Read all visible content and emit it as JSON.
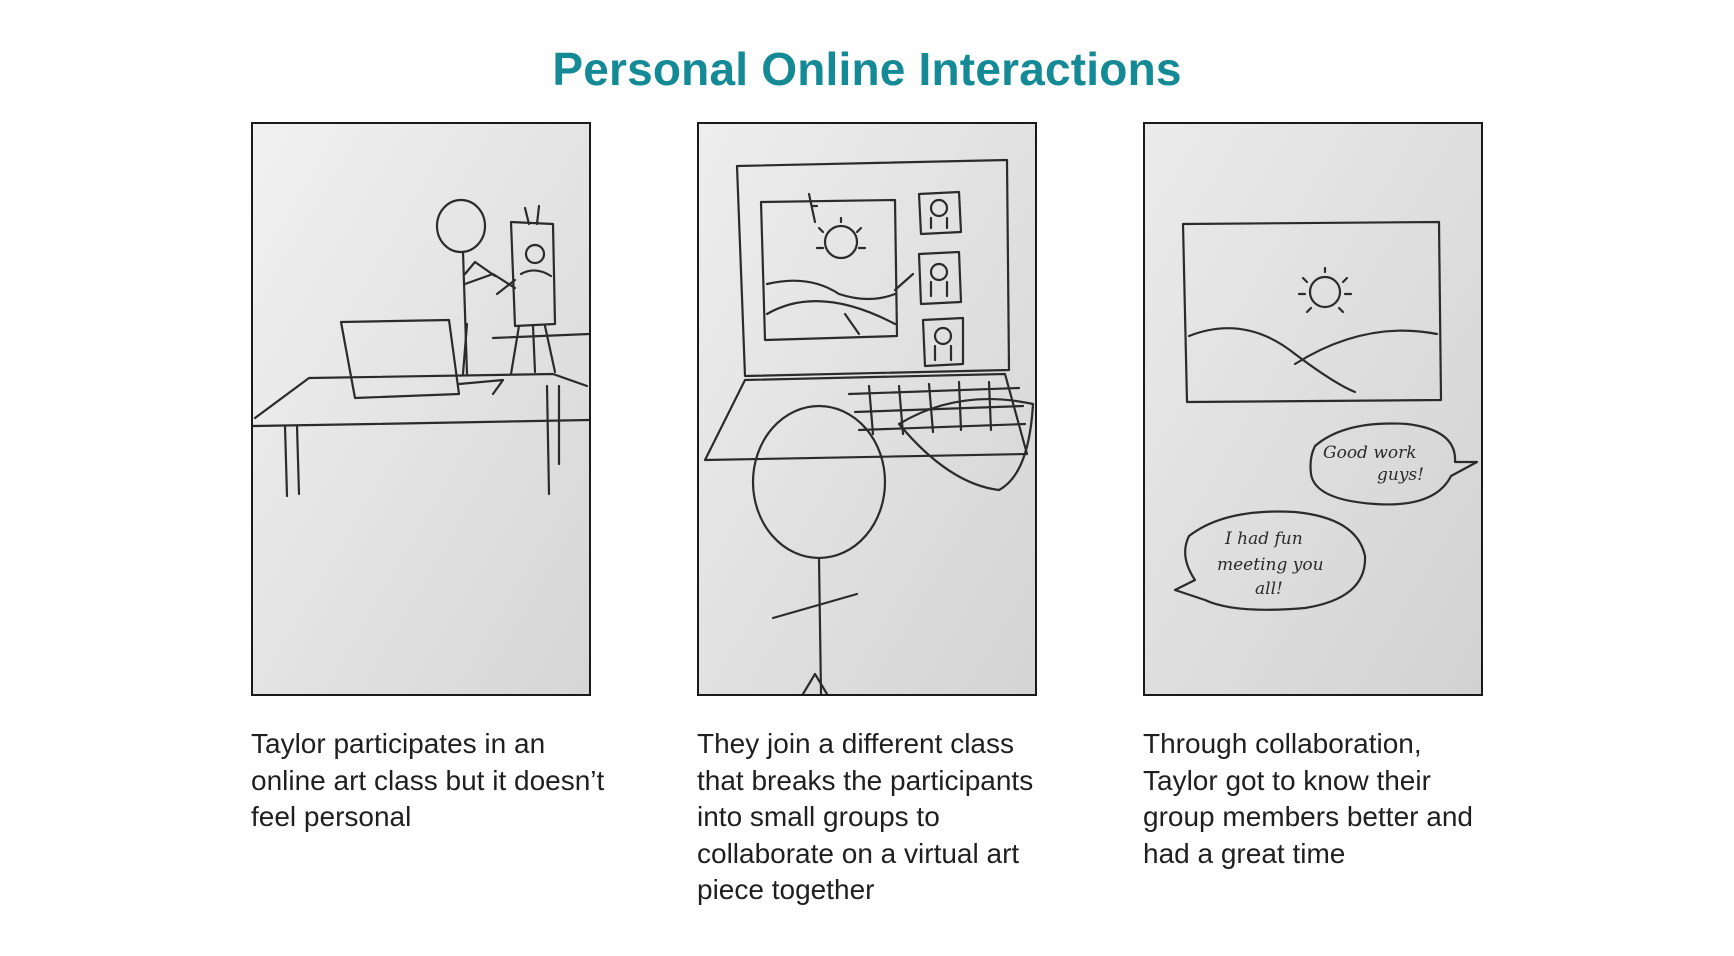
{
  "title": "Personal Online Interactions",
  "panels": [
    {
      "caption": "Taylor participates in an online art class but it doesn’t feel personal"
    },
    {
      "caption": "They join a different class that breaks the participants into small groups to collaborate on a virtual art piece together"
    },
    {
      "caption": "Through collaboration, Taylor got to know their group members better and had a great time",
      "bubble_1": [
        "Good work",
        "guys!"
      ],
      "bubble_2": [
        "I had fun",
        "meeting you",
        "all!"
      ]
    }
  ]
}
